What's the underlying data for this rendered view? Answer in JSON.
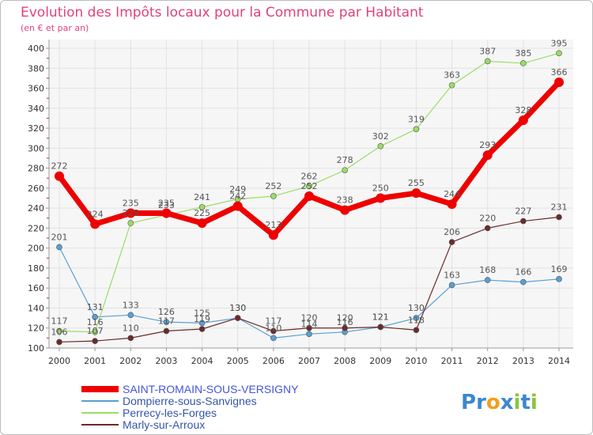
{
  "chart_data": {
    "type": "line",
    "title": "Evolution des Impôts locaux pour la Commune par Habitant",
    "subtitle": "(en € et par an)",
    "x": [
      2000,
      2001,
      2002,
      2003,
      2004,
      2005,
      2006,
      2007,
      2008,
      2009,
      2010,
      2011,
      2012,
      2013,
      2014
    ],
    "ylim": [
      100,
      400
    ],
    "yticks": [
      100,
      120,
      140,
      160,
      180,
      200,
      220,
      240,
      260,
      280,
      300,
      320,
      340,
      360,
      380,
      400
    ],
    "grid": true,
    "series": [
      {
        "name": "SAINT-ROMAIN-SOUS-VERSIGNY",
        "color": "#ee0000",
        "values": [
          272,
          224,
          235,
          235,
          225,
          242,
          213,
          252,
          238,
          250,
          255,
          244,
          293,
          328,
          366
        ]
      },
      {
        "name": "Dompierre-sous-Sanvignes",
        "color": "#5a9fd4",
        "values": [
          201,
          131,
          133,
          126,
          125,
          130,
          110,
          114,
          116,
          121,
          130,
          163,
          168,
          166,
          169
        ]
      },
      {
        "name": "Perrecy-les-Forges",
        "color": "#99dd66",
        "values": [
          117,
          116,
          225,
          233,
          241,
          249,
          252,
          262,
          278,
          302,
          319,
          363,
          387,
          385,
          395
        ]
      },
      {
        "name": "Marly-sur-Arroux",
        "color": "#6b2a2a",
        "values": [
          106,
          107,
          110,
          117,
          119,
          130,
          117,
          120,
          120,
          121,
          118,
          206,
          220,
          227,
          231
        ]
      }
    ]
  },
  "legend_colors": {
    "main_text": "#4455dd",
    "other_text": "#3355aa"
  },
  "logo": {
    "letters": [
      "P",
      "r",
      "o",
      "x",
      "i",
      "t",
      "i"
    ],
    "colors": [
      "#3b88cf",
      "#3b88cf",
      "#f0a020",
      "#3b88cf",
      "#8ac43f",
      "#3b88cf",
      "#8ac43f"
    ]
  }
}
